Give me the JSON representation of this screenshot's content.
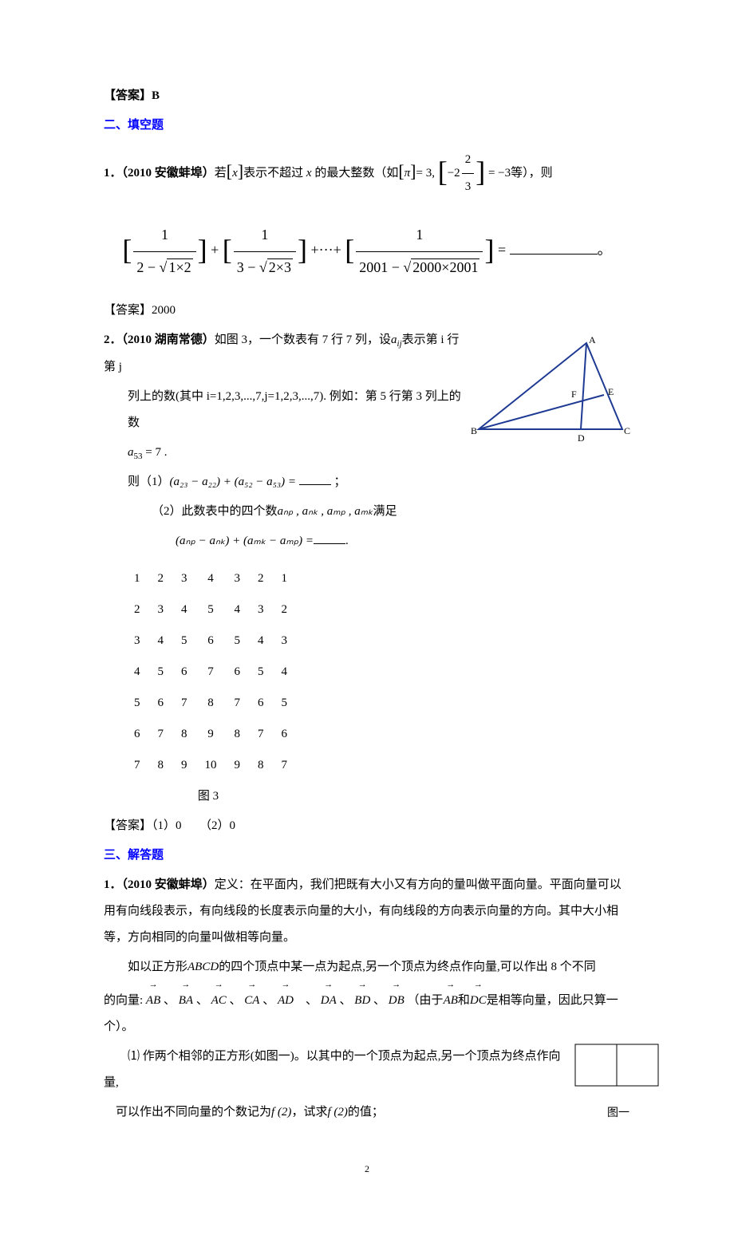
{
  "answer_b_label": "【答案】B",
  "section2_title": "二、填空题",
  "q1": {
    "num": "1．",
    "src": "（2010 安徽蚌埠）",
    "text_pre": "若",
    "x": "x",
    "text_mid1": "表示不超过",
    "text_mid2": "的最大整数（如",
    "pi": "π",
    "eq3": "= 3,",
    "mixed_neg": "−2",
    "mixed_num": "2",
    "mixed_den": "3",
    "eq_neg3": "= −3",
    "text_tail": "等），则",
    "eq_suffix": "。"
  },
  "eq1": {
    "one": "1",
    "d1": "2 − ",
    "r1": "1×2",
    "d2": "3 − ",
    "r2": "2×3",
    "dots": "+···+",
    "d3": "2001 − ",
    "r3": "2000×2001",
    "eq": " = "
  },
  "ans2000": "【答案】2000",
  "q2": {
    "num": "2．",
    "src": "（2010 湖南常德）",
    "line1a": "如图 3，一个数表有 7 行 7 列，设",
    "aij": "a",
    "aij_sub": "ij",
    "line1b": "表示第 i 行第 j",
    "line2": "列上的数(其中 i=1,2,3,...,7,j=1,2,3,...,7). 例如：第 5 行第 3 列上的数",
    "a53": "a",
    "a53_sub": "53",
    "eq7": " = 7 .",
    "p1_pre": "则（1）",
    "p1_expr": "(a₂₃ − a₂₂) + (a₅₂ − a₅₃) =",
    "p1_post": "；",
    "p2_pre": "（2）此数表中的四个数",
    "p2_vars": "aₙₚ , aₙₖ , aₘₚ , aₘₖ",
    "p2_suffix": "满足",
    "p2_expr": "(aₙₚ − aₙₖ) + (aₘₖ − aₘₚ) =",
    "p2_end": "."
  },
  "triangle": {
    "A": "A",
    "B": "B",
    "C": "C",
    "D": "D",
    "E": "E",
    "F": "F",
    "stroke": "#1f3a93",
    "fontsize": "12"
  },
  "table": {
    "rows": [
      [
        "1",
        "2",
        "3",
        "4",
        "3",
        "2",
        "1"
      ],
      [
        "2",
        "3",
        "4",
        "5",
        "4",
        "3",
        "2"
      ],
      [
        "3",
        "4",
        "5",
        "6",
        "5",
        "4",
        "3"
      ],
      [
        "4",
        "5",
        "6",
        "7",
        "6",
        "5",
        "4"
      ],
      [
        "5",
        "6",
        "7",
        "8",
        "7",
        "6",
        "5"
      ],
      [
        "6",
        "7",
        "8",
        "9",
        "8",
        "7",
        "6"
      ],
      [
        "7",
        "8",
        "9",
        "10",
        "9",
        "8",
        "7"
      ]
    ],
    "caption": "图 3"
  },
  "ans_q2": "【答案】（1）0　　（2）0",
  "section3_title": "三、解答题",
  "q3": {
    "num": "1．",
    "src": "（2010 安徽蚌埠）",
    "p1": "定义：在平面内，我们把既有大小又有方向的量叫做平面向量。平面向量可以用有向线段表示，有向线段的长度表示向量的大小，有向线段的方向表示向量的方向。其中大小相等，方向相同的向量叫做相等向量。",
    "p2a": "如以正方形",
    "ABCD": "ABCD",
    "p2b": "的四个顶点中某一点为起点,另一个顶点为终点作向量,可以作出 8 个不同",
    "p3a": "的向量:",
    "vAB": "AB",
    "vBA": "BA",
    "vAC": "AC",
    "vCA": "CA",
    "vAD": "AD",
    "vDA": "DA",
    "vBD": "BD",
    "vDB": "DB",
    "sep": "、",
    "p3b": "（由于",
    "p3c": "和",
    "vDC": "DC",
    "p3d": "是相等向量，因此只算一个）。",
    "sub1_pre": "⑴ 作两个相邻的正方形(如图一)。以其中的一个顶点为起点,另一个顶点为终点作向量,",
    "sub1_line2a": "可以作出不同向量的个数记为",
    "f2": "f (2)",
    "sub1_line2b": "，试求",
    "sub1_line2c": "的值；",
    "figcap": "图一"
  },
  "page_num": "2"
}
